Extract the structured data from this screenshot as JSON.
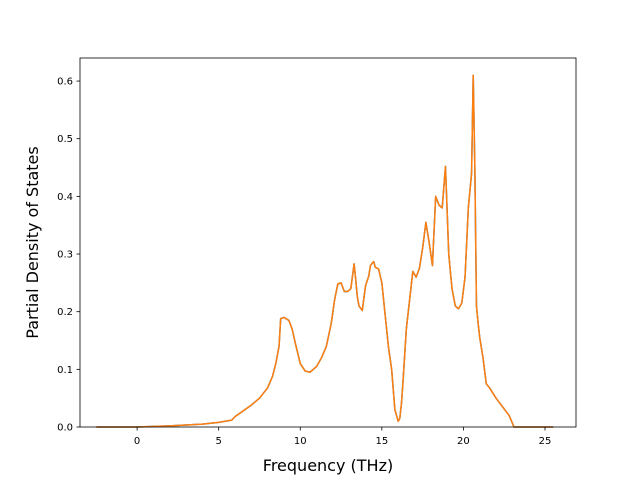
{
  "chart_data": {
    "type": "line",
    "title": "",
    "xlabel": "Frequency (THz)",
    "ylabel": "Partial Density of States",
    "xlim": [
      -3.5,
      26.9
    ],
    "ylim": [
      0.0,
      0.64
    ],
    "grid": false,
    "x_ticks": [
      0,
      5,
      10,
      15,
      20,
      25
    ],
    "x_tick_labels": [
      "0",
      "5",
      "10",
      "15",
      "20",
      "25"
    ],
    "y_ticks": [
      0.0,
      0.1,
      0.2,
      0.3,
      0.4,
      0.5,
      0.6
    ],
    "y_tick_labels": [
      "0.0",
      "0.1",
      "0.2",
      "0.3",
      "0.4",
      "0.5",
      "0.6"
    ],
    "series": [
      {
        "color": "#1f77b4",
        "x": [
          -2.5,
          0,
          2,
          4,
          5,
          5.8,
          6,
          6.5,
          7,
          7.5,
          8,
          8.3,
          8.5,
          8.7,
          8.8,
          9,
          9.3,
          9.5,
          9.7,
          10,
          10.3,
          10.6,
          11,
          11.3,
          11.6,
          11.9,
          12.1,
          12.3,
          12.5,
          12.7,
          12.9,
          13.1,
          13.3,
          13.4,
          13.5,
          13.6,
          13.8,
          14,
          14.2,
          14.3,
          14.5,
          14.6,
          14.8,
          15,
          15.2,
          15.4,
          15.6,
          15.8,
          16,
          16.1,
          16.2,
          16.3,
          16.5,
          16.7,
          16.9,
          17.1,
          17.3,
          17.5,
          17.7,
          17.9,
          18.1,
          18.3,
          18.5,
          18.7,
          18.9,
          19.1,
          19.3,
          19.5,
          19.7,
          19.9,
          20.1,
          20.3,
          20.5,
          20.6,
          20.7,
          20.8,
          20.9,
          21,
          21.2,
          21.4,
          21.6,
          22,
          22.4,
          22.8,
          23.1,
          23.5,
          25.5
        ],
        "y": [
          0.0,
          0.0,
          0.002,
          0.005,
          0.008,
          0.012,
          0.018,
          0.028,
          0.038,
          0.05,
          0.068,
          0.088,
          0.11,
          0.14,
          0.188,
          0.19,
          0.185,
          0.17,
          0.145,
          0.11,
          0.097,
          0.095,
          0.105,
          0.12,
          0.14,
          0.18,
          0.22,
          0.248,
          0.25,
          0.235,
          0.235,
          0.24,
          0.283,
          0.255,
          0.225,
          0.21,
          0.202,
          0.245,
          0.262,
          0.28,
          0.287,
          0.277,
          0.274,
          0.25,
          0.195,
          0.14,
          0.1,
          0.03,
          0.01,
          0.015,
          0.04,
          0.08,
          0.17,
          0.22,
          0.27,
          0.26,
          0.275,
          0.31,
          0.355,
          0.32,
          0.28,
          0.4,
          0.385,
          0.38,
          0.452,
          0.3,
          0.24,
          0.21,
          0.205,
          0.215,
          0.26,
          0.38,
          0.44,
          0.61,
          0.45,
          0.21,
          0.18,
          0.155,
          0.12,
          0.075,
          0.068,
          0.05,
          0.035,
          0.02,
          0.0,
          0.0,
          0.0
        ]
      },
      {
        "color": "#ff7f0e",
        "x": [
          -2.5,
          0,
          2,
          4,
          5,
          5.8,
          6,
          6.5,
          7,
          7.5,
          8,
          8.3,
          8.5,
          8.7,
          8.8,
          9,
          9.3,
          9.5,
          9.7,
          10,
          10.3,
          10.6,
          11,
          11.3,
          11.6,
          11.9,
          12.1,
          12.3,
          12.5,
          12.7,
          12.9,
          13.1,
          13.3,
          13.4,
          13.5,
          13.6,
          13.8,
          14,
          14.2,
          14.3,
          14.5,
          14.6,
          14.8,
          15,
          15.2,
          15.4,
          15.6,
          15.8,
          16,
          16.1,
          16.2,
          16.3,
          16.5,
          16.7,
          16.9,
          17.1,
          17.3,
          17.5,
          17.7,
          17.9,
          18.1,
          18.3,
          18.5,
          18.7,
          18.9,
          19.1,
          19.3,
          19.5,
          19.7,
          19.9,
          20.1,
          20.3,
          20.5,
          20.6,
          20.7,
          20.8,
          20.9,
          21,
          21.2,
          21.4,
          21.6,
          22,
          22.4,
          22.8,
          23.1,
          23.5,
          25.5
        ],
        "y": [
          0.0,
          0.0,
          0.002,
          0.005,
          0.008,
          0.012,
          0.018,
          0.028,
          0.038,
          0.05,
          0.068,
          0.088,
          0.11,
          0.14,
          0.188,
          0.19,
          0.185,
          0.17,
          0.145,
          0.11,
          0.097,
          0.095,
          0.105,
          0.12,
          0.14,
          0.18,
          0.22,
          0.248,
          0.25,
          0.235,
          0.235,
          0.24,
          0.283,
          0.255,
          0.225,
          0.21,
          0.202,
          0.245,
          0.262,
          0.28,
          0.287,
          0.277,
          0.274,
          0.25,
          0.195,
          0.14,
          0.1,
          0.03,
          0.01,
          0.015,
          0.04,
          0.08,
          0.17,
          0.22,
          0.27,
          0.26,
          0.275,
          0.31,
          0.355,
          0.32,
          0.28,
          0.4,
          0.385,
          0.38,
          0.452,
          0.3,
          0.24,
          0.21,
          0.205,
          0.215,
          0.26,
          0.38,
          0.44,
          0.61,
          0.45,
          0.21,
          0.18,
          0.155,
          0.12,
          0.075,
          0.068,
          0.05,
          0.035,
          0.02,
          0.0,
          0.0,
          0.0
        ]
      }
    ]
  }
}
